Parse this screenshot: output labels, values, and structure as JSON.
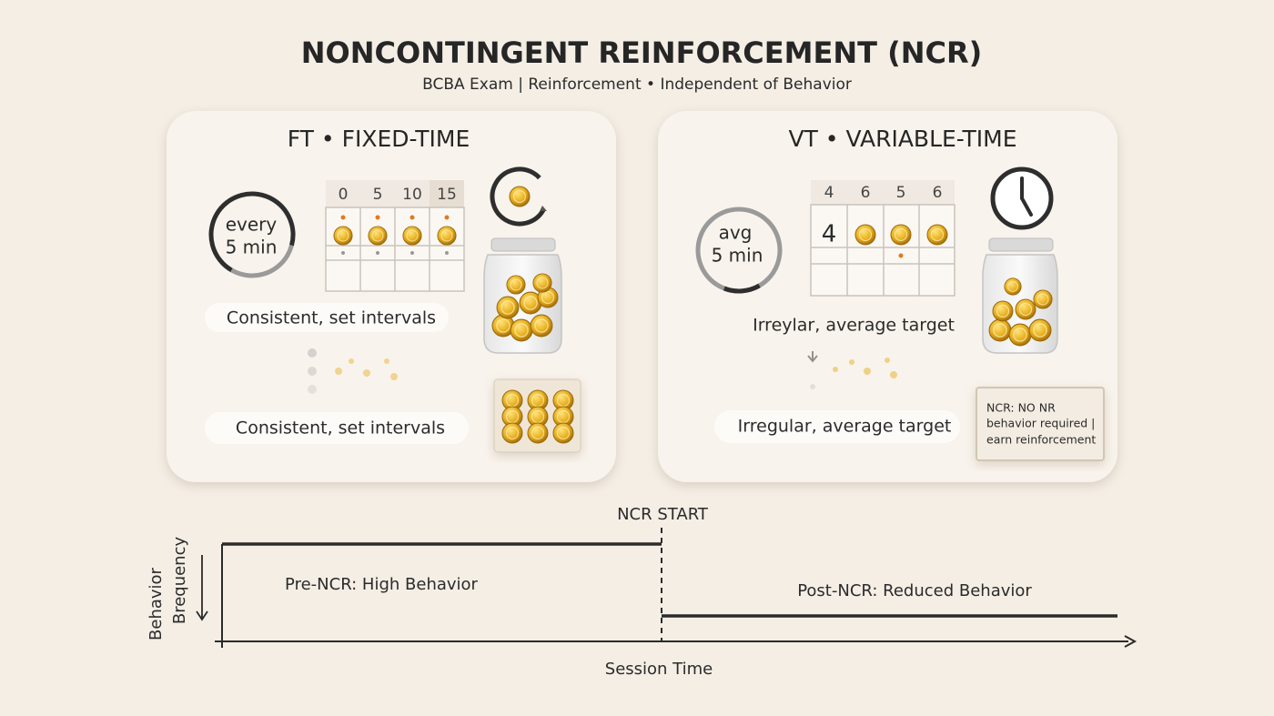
{
  "header": {
    "title": "NONCONTINGENT REINFORCEMENT (NCR)",
    "subtitle": "BCBA Exam | Reinforcement • Independent of Behavior"
  },
  "panels": [
    {
      "title": "FT • FIXED-TIME",
      "dial": [
        "every",
        "5 min"
      ],
      "schedule_header": [
        "0",
        "5",
        "10",
        "15"
      ],
      "captions": [
        "Consistent, set intervals",
        "Consistent, set intervals"
      ]
    },
    {
      "title": "VT • VARIABLE-TIME",
      "dial": [
        "avg",
        "5 min"
      ],
      "schedule_header": [
        "4",
        "6",
        "5",
        "6"
      ],
      "grid_entry": "4",
      "captions": [
        "Irreylar, average target",
        "Irregular, average target"
      ],
      "note": [
        "NCR: NO NR",
        "behavior required |",
        "earn reinforcement"
      ]
    }
  ],
  "graph": {
    "marker": "NCR START",
    "y_label": [
      "Behavior",
      "Brequency"
    ],
    "x_label": "Session Time",
    "pre_label": "Pre-NCR: High Behavior",
    "post_label": "Post-NCR: Reduced Behavior"
  }
}
